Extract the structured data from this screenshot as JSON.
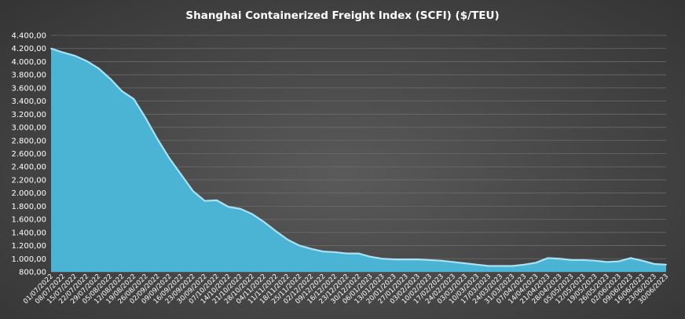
{
  "chart_data": {
    "type": "area",
    "title": "Shanghai Containerized Freight Index  (SCFI) ($/TEU)",
    "xlabel": "",
    "ylabel": "",
    "ylim": [
      800,
      4400
    ],
    "grid": true,
    "legend": "none",
    "colors": {
      "fill": "#4bb4d5",
      "edge": "#a8e2f3"
    },
    "y_ticks": [
      "800,00",
      "1.000,00",
      "1.200,00",
      "1.400,00",
      "1.600,00",
      "1.800,00",
      "2.000,00",
      "2.200,00",
      "2.400,00",
      "2.600,00",
      "2.800,00",
      "3.000,00",
      "3.200,00",
      "3.400,00",
      "3.600,00",
      "3.800,00",
      "4.000,00",
      "4.200,00",
      "4.400,00"
    ],
    "x": [
      "01/07/2022",
      "08/07/2022",
      "15/07/2022",
      "22/07/2022",
      "29/07/2022",
      "05/08/2022",
      "12/08/2022",
      "19/08/2022",
      "26/08/2022",
      "02/09/2022",
      "09/09/2022",
      "16/09/2022",
      "23/09/2022",
      "30/09/2022",
      "07/10/2022",
      "14/10/2022",
      "21/10/2022",
      "28/10/2022",
      "04/11/2022",
      "11/11/2022",
      "18/11/2022",
      "25/11/2022",
      "02/12/2022",
      "09/12/2022",
      "16/12/2022",
      "23/12/2022",
      "30/12/2022",
      "06/01/2023",
      "13/01/2023",
      "20/01/2023",
      "27/01/2023",
      "03/02/2023",
      "10/02/2023",
      "17/02/2023",
      "24/02/2023",
      "03/03/2023",
      "10/03/2023",
      "17/03/2023",
      "24/03/2023",
      "31/03/2023",
      "07/04/2023",
      "14/04/2023",
      "21/04/2023",
      "28/04/2023",
      "05/05/2023",
      "12/05/2023",
      "19/05/2023",
      "26/05/2023",
      "02/06/2023",
      "09/06/2023",
      "16/06/2023",
      "23/06/2023",
      "30/06/2023"
    ],
    "values": [
      4200,
      4140,
      4090,
      4010,
      3900,
      3740,
      3550,
      3430,
      3140,
      2820,
      2530,
      2280,
      2030,
      1880,
      1890,
      1790,
      1760,
      1680,
      1560,
      1420,
      1290,
      1200,
      1150,
      1110,
      1100,
      1080,
      1080,
      1030,
      1000,
      990,
      990,
      990,
      980,
      970,
      950,
      930,
      910,
      890,
      890,
      890,
      910,
      940,
      1010,
      1000,
      980,
      980,
      970,
      950,
      960,
      1010,
      970,
      920,
      910
    ]
  }
}
